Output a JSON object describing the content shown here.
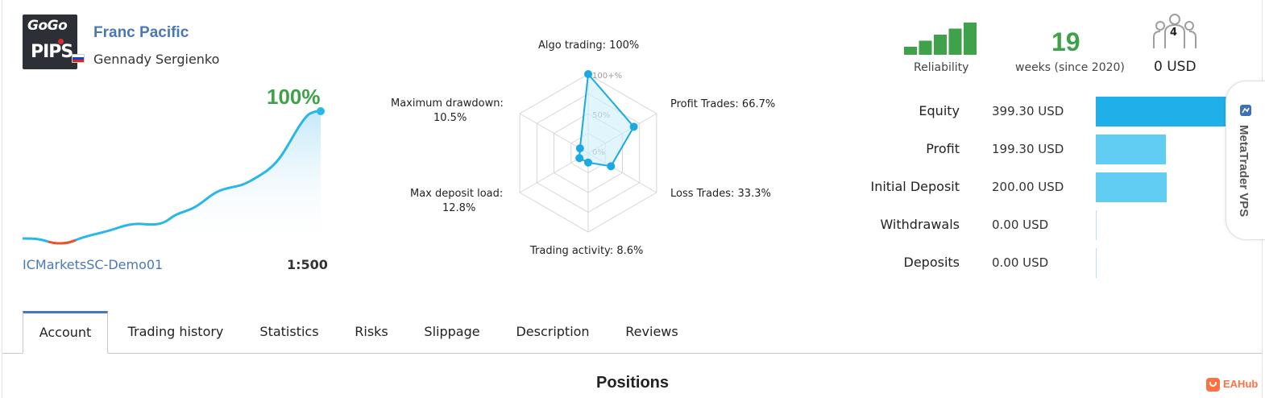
{
  "signal": {
    "logo_line1": "GoGo",
    "logo_line2": "PIPS",
    "name": "Franc Pacific",
    "author": "Gennady Sergienko",
    "flag_icon": "russia-flag-icon",
    "growth": "100%",
    "server": "ICMarketsSC-Demo01",
    "leverage": "1:500"
  },
  "radar": {
    "labels": {
      "algo": "Algo trading: 100%",
      "profit": "Profit Trades: 66.7%",
      "loss": "Loss Trades: 33.3%",
      "activity": "Trading activity: 8.6%",
      "deposit_load_1": "Max deposit load:",
      "deposit_load_2": "12.8%",
      "drawdown_1": "Maximum drawdown:",
      "drawdown_2": "10.5%"
    },
    "scale": [
      "100+%",
      "50%",
      "0%"
    ],
    "values": {
      "algo": 100,
      "profit": 66.7,
      "loss": 33.3,
      "activity": 8.6,
      "deposit_load": 12.8,
      "drawdown": 10.5
    }
  },
  "stats": {
    "reliability_label": "Reliability",
    "reliability_level": 5,
    "reliability_max": 5,
    "weeks": "19",
    "weeks_label": "weeks (since 2020)",
    "subscribers": "4",
    "price": "0 USD"
  },
  "financials": [
    {
      "label": "Equity",
      "value": "399.30 USD",
      "amount": 399.3
    },
    {
      "label": "Profit",
      "value": "199.30 USD",
      "amount": 199.3
    },
    {
      "label": "Initial Deposit",
      "value": "200.00 USD",
      "amount": 200.0
    },
    {
      "label": "Withdrawals",
      "value": "0.00 USD",
      "amount": 0
    },
    {
      "label": "Deposits",
      "value": "0.00 USD",
      "amount": 0
    }
  ],
  "vps_tab": "MetaTrader VPS",
  "tabs": [
    "Account",
    "Trading history",
    "Statistics",
    "Risks",
    "Slippage",
    "Description",
    "Reviews"
  ],
  "section_title": "Positions",
  "watermark": "EAHub",
  "colors": {
    "accent_blue": "#4a78b4",
    "growth_green": "#3fa24a",
    "chart_line": "#29b6e8",
    "equity_bar": "#1fb0ea",
    "light_bar": "#62cdf3",
    "loss_segment": "#e8542a"
  }
}
